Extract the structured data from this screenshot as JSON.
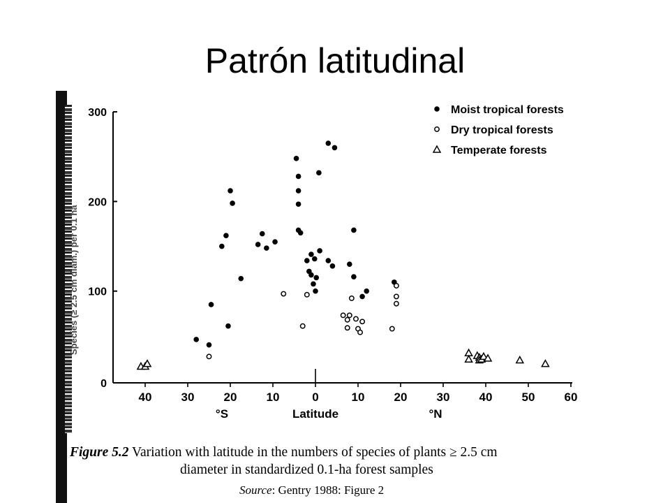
{
  "slide": {
    "title": "Patrón latitudinal"
  },
  "chart_data": {
    "type": "scatter",
    "title": "",
    "xlabel": "Latitude",
    "ylabel": "Species (≥ 2.5 cm diam.) per 0.1 ha",
    "x_ticks": [
      "40",
      "30",
      "20",
      "10",
      "0",
      "10",
      "20",
      "30",
      "40",
      "50",
      "60"
    ],
    "y_ticks": [
      "0",
      "100",
      "200",
      "300"
    ],
    "hemisphere_labels": {
      "south": "°S",
      "north": "°N"
    },
    "xlim": [
      -42,
      60
    ],
    "ylim": [
      0,
      300
    ],
    "x_convention": "southern latitudes negative",
    "legend_position": "top-right",
    "series": [
      {
        "name": "Moist tropical forests",
        "marker": "filled-circle",
        "points": [
          [
            -28,
            46
          ],
          [
            -25,
            40
          ],
          [
            -24.5,
            85
          ],
          [
            -22,
            150
          ],
          [
            -21,
            162
          ],
          [
            -20.5,
            61
          ],
          [
            -20,
            212
          ],
          [
            -19.5,
            198
          ],
          [
            -17.5,
            114
          ],
          [
            -13.5,
            152
          ],
          [
            -12.5,
            164
          ],
          [
            -11.5,
            148
          ],
          [
            -9.5,
            155
          ],
          [
            -4.5,
            248
          ],
          [
            -4,
            228
          ],
          [
            -4,
            212
          ],
          [
            -4,
            197
          ],
          [
            -4,
            168
          ],
          [
            -3.5,
            165
          ],
          [
            -2,
            134
          ],
          [
            -1.5,
            122
          ],
          [
            -1,
            141
          ],
          [
            -1,
            118
          ],
          [
            -0.5,
            108
          ],
          [
            -0.2,
            136
          ],
          [
            0,
            100
          ],
          [
            0.2,
            115
          ],
          [
            1,
            145
          ],
          [
            0.8,
            232
          ],
          [
            3,
            134
          ],
          [
            3,
            265
          ],
          [
            4,
            128
          ],
          [
            4.5,
            260
          ],
          [
            8,
            130
          ],
          [
            9,
            168
          ],
          [
            9,
            116
          ],
          [
            11,
            94
          ],
          [
            12,
            100
          ],
          [
            18.5,
            110
          ]
        ]
      },
      {
        "name": "Dry tropical forests",
        "marker": "open-circle",
        "points": [
          [
            -25,
            27
          ],
          [
            -7.5,
            97
          ],
          [
            -3,
            61
          ],
          [
            -2,
            96
          ],
          [
            6.5,
            73
          ],
          [
            7.5,
            59
          ],
          [
            7.5,
            68
          ],
          [
            8,
            73
          ],
          [
            8.5,
            92
          ],
          [
            9.5,
            69
          ],
          [
            10,
            58
          ],
          [
            10.5,
            54
          ],
          [
            11,
            66
          ],
          [
            18,
            58
          ],
          [
            19,
            106
          ],
          [
            19,
            94
          ],
          [
            19,
            86
          ]
        ]
      },
      {
        "name": "Temperate forests",
        "marker": "open-triangle",
        "points": [
          [
            -41,
            16
          ],
          [
            -40,
            16
          ],
          [
            -39.5,
            19
          ],
          [
            36,
            31
          ],
          [
            36,
            24
          ],
          [
            38,
            28
          ],
          [
            38.5,
            26
          ],
          [
            38.5,
            23
          ],
          [
            39,
            24
          ],
          [
            39.5,
            27
          ],
          [
            40.5,
            25
          ],
          [
            48,
            23
          ],
          [
            54,
            19
          ]
        ]
      }
    ]
  },
  "caption": {
    "figure_label": "Figure 5.2",
    "line1": "Variation with latitude in the numbers of species of plants ≥ 2.5 cm",
    "line2": "diameter in standardized 0.1-ha forest samples",
    "source_label": "Source",
    "source_text": ": Gentry 1988: Figure 2"
  }
}
